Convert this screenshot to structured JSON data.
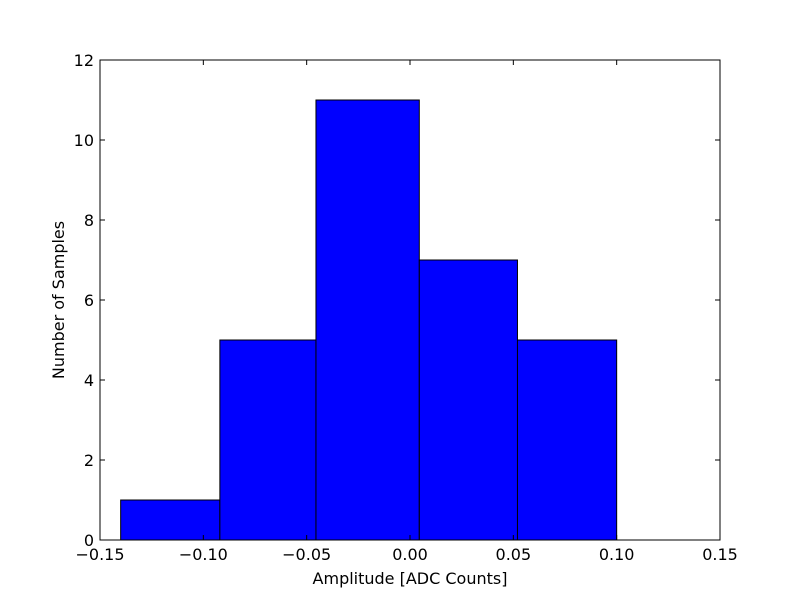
{
  "chart_data": {
    "type": "bar",
    "title": "",
    "xlabel": "Amplitude [ADC Counts]",
    "ylabel": "Number of Samples",
    "xlim": [
      -0.15,
      0.15
    ],
    "ylim": [
      0,
      12
    ],
    "bin_edges": [
      -0.14,
      -0.092,
      -0.0455,
      0.0045,
      0.052,
      0.1
    ],
    "values": [
      1,
      5,
      11,
      7,
      5
    ],
    "xticks": [
      -0.15,
      -0.1,
      -0.05,
      0.0,
      0.05,
      0.1,
      0.15
    ],
    "xtick_labels": [
      "−0.15",
      "−0.10",
      "−0.05",
      "0.00",
      "0.05",
      "0.10",
      "0.15"
    ],
    "yticks": [
      0,
      2,
      4,
      6,
      8,
      10,
      12
    ],
    "ytick_labels": [
      "0",
      "2",
      "4",
      "6",
      "8",
      "10",
      "12"
    ],
    "grid": false,
    "bar_color": "#0000ff",
    "edge_color": "#000000"
  }
}
